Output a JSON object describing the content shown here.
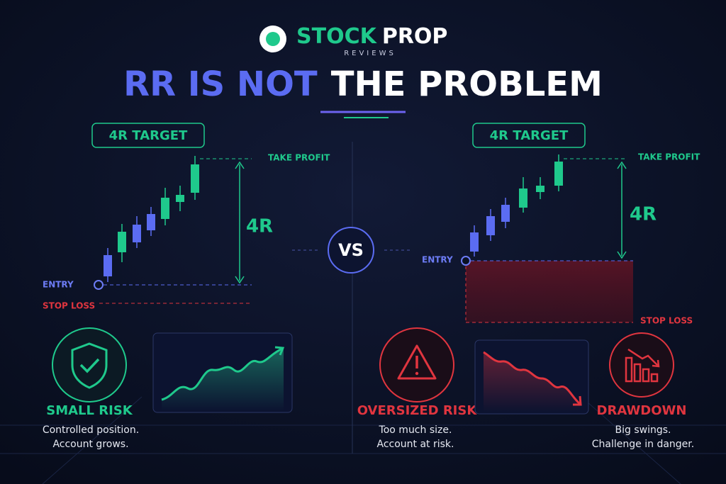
{
  "logo": {
    "brand_primary": "STOCK",
    "brand_secondary": "PROP",
    "tagline": "REVIEWS"
  },
  "headline": {
    "highlight": "RR IS NOT",
    "rest": "THE PROBLEM"
  },
  "vs_label": "VS",
  "left_setup": {
    "target_badge": "4R TARGET",
    "take_profit": "TAKE PROFIT",
    "reward_label": "4R",
    "entry": "ENTRY",
    "stop_loss": "STOP LOSS"
  },
  "right_setup": {
    "target_badge": "4R TARGET",
    "take_profit": "TAKE PROFIT",
    "reward_label": "4R",
    "entry": "ENTRY",
    "stop_loss": "STOP LOSS"
  },
  "outcomes": [
    {
      "title": "SMALL RISK",
      "lines": [
        "Controlled position.",
        "Account grows."
      ]
    },
    {
      "title": "OVERSIZED RISK",
      "lines": [
        "Too much size.",
        "Account at risk."
      ]
    },
    {
      "title": "DRAWDOWN",
      "lines": [
        "Big swings.",
        "Challenge in danger."
      ]
    }
  ]
}
